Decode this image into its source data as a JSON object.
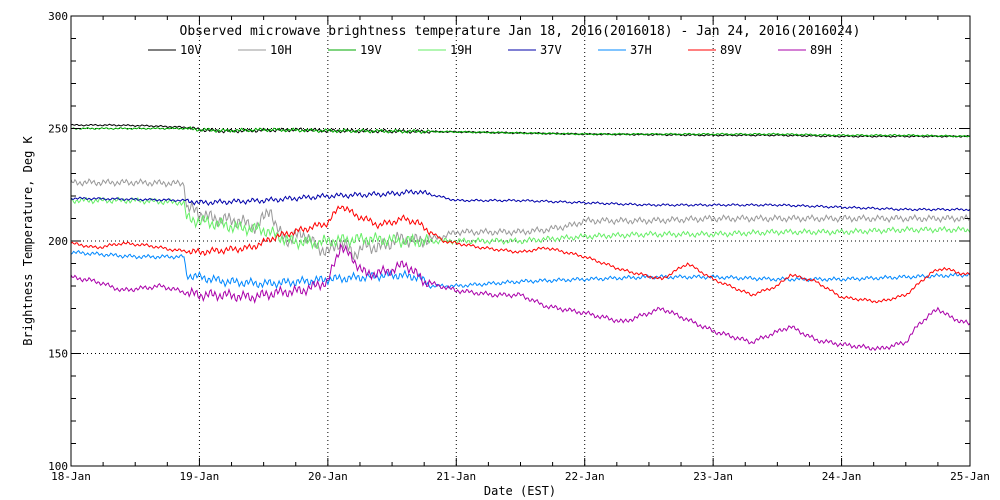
{
  "chart_data": {
    "type": "line",
    "title": "Observed microwave brightness temperature Jan 18, 2016(2016018) - Jan 24, 2016(2016024)",
    "xlabel": "Date (EST)",
    "ylabel": "Brightness Temperature, Deg K",
    "xlim": [
      0,
      7
    ],
    "ylim": [
      100,
      300
    ],
    "x_tick_labels": [
      "18-Jan",
      "19-Jan",
      "20-Jan",
      "21-Jan",
      "22-Jan",
      "23-Jan",
      "24-Jan",
      "25-Jan"
    ],
    "y_ticks": [
      100,
      150,
      200,
      250,
      300
    ],
    "grid": "dotted",
    "legend_position": "top",
    "series": [
      {
        "name": "10V",
        "color": "#000000",
        "noise": 0.4,
        "points": [
          [
            0,
            251.5
          ],
          [
            0.3,
            251.5
          ],
          [
            0.6,
            251.2
          ],
          [
            0.9,
            250.5
          ],
          [
            1.0,
            249.5
          ],
          [
            1.2,
            248.8
          ],
          [
            1.5,
            249.2
          ],
          [
            1.8,
            249.5
          ],
          [
            2.0,
            249.0
          ],
          [
            2.5,
            248.8
          ],
          [
            3.0,
            248.5
          ],
          [
            3.5,
            248.0
          ],
          [
            4.0,
            247.5
          ],
          [
            4.5,
            247.3
          ],
          [
            5.0,
            247.0
          ],
          [
            5.5,
            247.0
          ],
          [
            6.0,
            246.5
          ],
          [
            6.5,
            246.5
          ],
          [
            7.0,
            246.5
          ]
        ]
      },
      {
        "name": "10H",
        "color": "#999999",
        "noise": 1.6,
        "points": [
          [
            0,
            226.0
          ],
          [
            0.5,
            226.0
          ],
          [
            0.88,
            225.5
          ],
          [
            0.9,
            215.0
          ],
          [
            1.1,
            210.0
          ],
          [
            1.3,
            209.0
          ],
          [
            1.45,
            206.0
          ],
          [
            1.55,
            215.0
          ],
          [
            1.6,
            205.0
          ],
          [
            1.7,
            200.0
          ],
          [
            1.8,
            204.0
          ],
          [
            1.9,
            198.0
          ],
          [
            2.0,
            195.0
          ],
          [
            2.1,
            200.0
          ],
          [
            2.2,
            194.0
          ],
          [
            2.3,
            198.0
          ],
          [
            2.4,
            197.0
          ],
          [
            2.55,
            201.0
          ],
          [
            2.7,
            200.0
          ],
          [
            2.9,
            202.0
          ],
          [
            3.0,
            204.0
          ],
          [
            3.2,
            204.0
          ],
          [
            3.5,
            204.0
          ],
          [
            3.7,
            205.0
          ],
          [
            3.9,
            207.0
          ],
          [
            4.0,
            209.0
          ],
          [
            4.5,
            209.0
          ],
          [
            5.0,
            210.0
          ],
          [
            5.5,
            210.0
          ],
          [
            6.0,
            210.0
          ],
          [
            6.5,
            210.0
          ],
          [
            7.0,
            210.0
          ]
        ]
      },
      {
        "name": "19V",
        "color": "#00aa00",
        "noise": 0.4,
        "points": [
          [
            0,
            250.0
          ],
          [
            0.5,
            250.0
          ],
          [
            0.9,
            250.0
          ],
          [
            1.0,
            249.5
          ],
          [
            1.2,
            249.0
          ],
          [
            1.5,
            249.5
          ],
          [
            2.0,
            249.0
          ],
          [
            2.5,
            248.8
          ],
          [
            3.0,
            248.5
          ],
          [
            3.5,
            248.0
          ],
          [
            4.0,
            247.5
          ],
          [
            4.5,
            247.5
          ],
          [
            5.0,
            247.5
          ],
          [
            5.5,
            247.5
          ],
          [
            6.0,
            247.0
          ],
          [
            6.5,
            247.0
          ],
          [
            7.0,
            246.5
          ]
        ]
      },
      {
        "name": "19H",
        "color": "#66ee66",
        "noise": 1.4,
        "points": [
          [
            0,
            218.0
          ],
          [
            0.5,
            218.0
          ],
          [
            0.88,
            217.0
          ],
          [
            0.9,
            210.0
          ],
          [
            1.1,
            208.0
          ],
          [
            1.3,
            206.0
          ],
          [
            1.5,
            205.0
          ],
          [
            1.7,
            200.0
          ],
          [
            1.9,
            199.0
          ],
          [
            2.0,
            200.0
          ],
          [
            2.3,
            201.0
          ],
          [
            2.6,
            200.0
          ],
          [
            3.0,
            200.0
          ],
          [
            3.5,
            200.0
          ],
          [
            4.0,
            202.0
          ],
          [
            4.5,
            203.0
          ],
          [
            5.0,
            203.0
          ],
          [
            5.5,
            204.0
          ],
          [
            6.0,
            204.0
          ],
          [
            6.5,
            205.0
          ],
          [
            7.0,
            205.0
          ]
        ]
      },
      {
        "name": "37V",
        "color": "#0000aa",
        "noise": 0.6,
        "points": [
          [
            0,
            219.0
          ],
          [
            0.5,
            218.5
          ],
          [
            0.9,
            218.0
          ],
          [
            1.0,
            217.0
          ],
          [
            1.5,
            218.0
          ],
          [
            2.0,
            220.0
          ],
          [
            2.5,
            221.0
          ],
          [
            2.7,
            222.0
          ],
          [
            3.0,
            218.0
          ],
          [
            3.5,
            218.0
          ],
          [
            4.0,
            217.0
          ],
          [
            4.5,
            216.0
          ],
          [
            5.0,
            216.0
          ],
          [
            5.5,
            216.0
          ],
          [
            6.0,
            215.0
          ],
          [
            6.5,
            214.0
          ],
          [
            7.0,
            214.0
          ]
        ]
      },
      {
        "name": "37H",
        "color": "#0088ff",
        "noise": 1.0,
        "points": [
          [
            0,
            195.0
          ],
          [
            0.5,
            193.0
          ],
          [
            0.88,
            193.0
          ],
          [
            0.9,
            185.0
          ],
          [
            1.2,
            182.0
          ],
          [
            1.5,
            181.0
          ],
          [
            1.8,
            182.0
          ],
          [
            2.0,
            183.0
          ],
          [
            2.3,
            184.0
          ],
          [
            2.5,
            185.0
          ],
          [
            2.7,
            184.0
          ],
          [
            2.8,
            180.0
          ],
          [
            3.0,
            180.0
          ],
          [
            3.5,
            182.0
          ],
          [
            4.0,
            183.0
          ],
          [
            4.5,
            184.0
          ],
          [
            5.0,
            184.0
          ],
          [
            5.5,
            183.0
          ],
          [
            6.0,
            183.0
          ],
          [
            6.5,
            184.0
          ],
          [
            7.0,
            185.0
          ]
        ]
      },
      {
        "name": "89V",
        "color": "#ff0000",
        "noise": 0.8,
        "points": [
          [
            0,
            199.0
          ],
          [
            0.2,
            197.0
          ],
          [
            0.4,
            199.0
          ],
          [
            0.6,
            198.0
          ],
          [
            0.8,
            196.0
          ],
          [
            1.0,
            195.0
          ],
          [
            1.2,
            196.0
          ],
          [
            1.4,
            197.0
          ],
          [
            1.6,
            202.0
          ],
          [
            1.8,
            205.0
          ],
          [
            2.0,
            208.0
          ],
          [
            2.1,
            216.0
          ],
          [
            2.2,
            212.0
          ],
          [
            2.4,
            207.0
          ],
          [
            2.6,
            210.0
          ],
          [
            2.7,
            208.0
          ],
          [
            2.9,
            200.0
          ],
          [
            3.2,
            197.0
          ],
          [
            3.5,
            195.0
          ],
          [
            3.7,
            197.0
          ],
          [
            4.0,
            193.0
          ],
          [
            4.3,
            187.0
          ],
          [
            4.6,
            183.0
          ],
          [
            4.8,
            190.0
          ],
          [
            5.0,
            183.0
          ],
          [
            5.3,
            176.0
          ],
          [
            5.5,
            180.0
          ],
          [
            5.6,
            185.0
          ],
          [
            5.8,
            182.0
          ],
          [
            6.0,
            175.0
          ],
          [
            6.3,
            173.0
          ],
          [
            6.5,
            176.0
          ],
          [
            6.7,
            186.0
          ],
          [
            6.8,
            188.0
          ],
          [
            6.9,
            186.0
          ],
          [
            7.0,
            185.0
          ]
        ]
      },
      {
        "name": "89H",
        "color": "#aa00aa",
        "noise": 1.2,
        "points": [
          [
            0,
            184.0
          ],
          [
            0.2,
            182.0
          ],
          [
            0.4,
            178.0
          ],
          [
            0.7,
            180.0
          ],
          [
            0.9,
            177.0
          ],
          [
            1.0,
            176.0
          ],
          [
            1.2,
            176.0
          ],
          [
            1.4,
            175.0
          ],
          [
            1.6,
            177.0
          ],
          [
            1.8,
            178.0
          ],
          [
            2.0,
            182.0
          ],
          [
            2.1,
            198.0
          ],
          [
            2.3,
            185.0
          ],
          [
            2.5,
            187.0
          ],
          [
            2.6,
            190.0
          ],
          [
            2.75,
            182.0
          ],
          [
            3.0,
            178.0
          ],
          [
            3.3,
            176.0
          ],
          [
            3.5,
            176.0
          ],
          [
            3.7,
            171.0
          ],
          [
            4.0,
            168.0
          ],
          [
            4.3,
            164.0
          ],
          [
            4.6,
            170.0
          ],
          [
            4.8,
            165.0
          ],
          [
            5.0,
            160.0
          ],
          [
            5.3,
            155.0
          ],
          [
            5.6,
            162.0
          ],
          [
            5.8,
            156.0
          ],
          [
            6.0,
            154.0
          ],
          [
            6.3,
            152.0
          ],
          [
            6.5,
            155.0
          ],
          [
            6.6,
            163.0
          ],
          [
            6.75,
            170.0
          ],
          [
            6.85,
            166.0
          ],
          [
            7.0,
            163.0
          ]
        ]
      }
    ]
  }
}
